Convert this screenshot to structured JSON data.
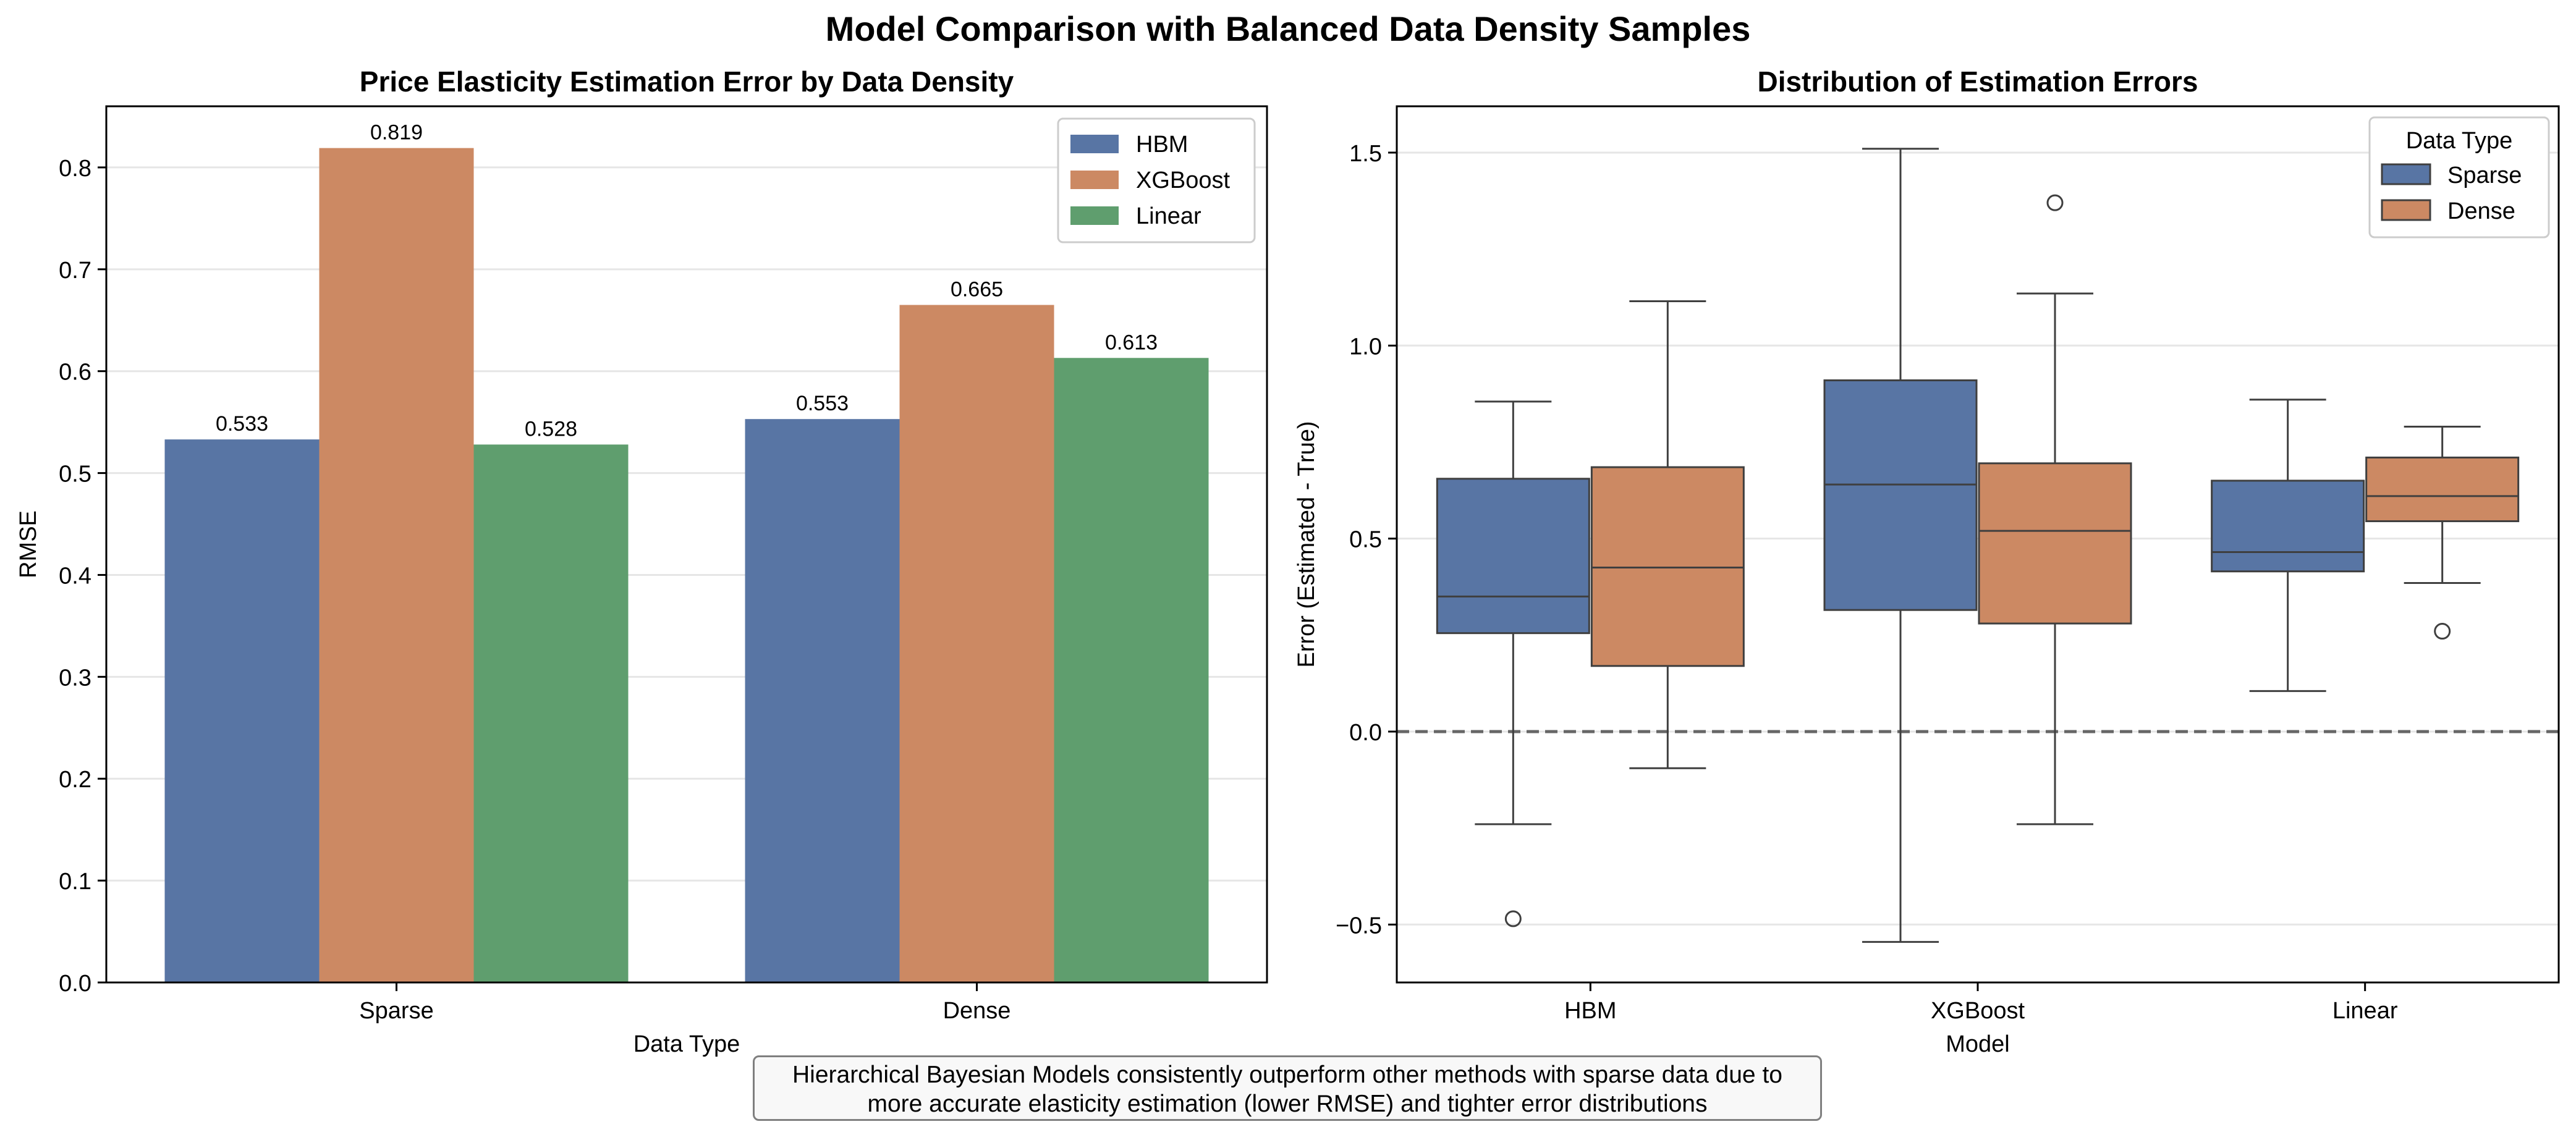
{
  "figure": {
    "suptitle": "Model Comparison with Balanced Data Density Samples",
    "note_lines": [
      "Hierarchical Bayesian Models consistently outperform other methods with sparse data due to",
      "more accurate elasticity estimation (lower RMSE) and tighter error distributions"
    ]
  },
  "colors": {
    "HBM": "#5875a4",
    "XGBoost": "#cc8963",
    "Linear": "#5f9e6e",
    "Sparse": "#5875a4",
    "Dense": "#cc8963"
  },
  "chart_data": [
    {
      "type": "bar",
      "title": "Price Elasticity Estimation Error by Data Density",
      "xlabel": "Data Type",
      "ylabel": "RMSE",
      "categories": [
        "Sparse",
        "Dense"
      ],
      "series": [
        {
          "name": "HBM",
          "values": [
            0.533,
            0.553
          ]
        },
        {
          "name": "XGBoost",
          "values": [
            0.819,
            0.665
          ]
        },
        {
          "name": "Linear",
          "values": [
            0.528,
            0.613
          ]
        }
      ],
      "data_labels": [
        [
          "0.533",
          "0.819",
          "0.528"
        ],
        [
          "0.553",
          "0.665",
          "0.613"
        ]
      ],
      "ylim": [
        0,
        0.86
      ],
      "yticks": [
        0.0,
        0.1,
        0.2,
        0.3,
        0.4,
        0.5,
        0.6,
        0.7,
        0.8
      ],
      "ytick_labels": [
        "0.0",
        "0.1",
        "0.2",
        "0.3",
        "0.4",
        "0.5",
        "0.6",
        "0.7",
        "0.8"
      ],
      "grid": "y",
      "legend": {
        "placement": "top-right",
        "entries": [
          "HBM",
          "XGBoost",
          "Linear"
        ]
      }
    },
    {
      "type": "box",
      "title": "Distribution of Estimation Errors",
      "xlabel": "Model",
      "ylabel": "Error (Estimated - True)",
      "categories": [
        "HBM",
        "XGBoost",
        "Linear"
      ],
      "series": [
        {
          "name": "Sparse",
          "boxes": [
            {
              "whisker_low": -0.24,
              "q1": 0.255,
              "median": 0.35,
              "q3": 0.655,
              "whisker_high": 0.855,
              "outliers": [
                -0.485
              ]
            },
            {
              "whisker_low": -0.545,
              "q1": 0.315,
              "median": 0.64,
              "q3": 0.91,
              "whisker_high": 1.51,
              "outliers": []
            },
            {
              "whisker_low": 0.105,
              "q1": 0.415,
              "median": 0.465,
              "q3": 0.65,
              "whisker_high": 0.86,
              "outliers": []
            }
          ]
        },
        {
          "name": "Dense",
          "boxes": [
            {
              "whisker_low": -0.095,
              "q1": 0.17,
              "median": 0.425,
              "q3": 0.685,
              "whisker_high": 1.115,
              "outliers": []
            },
            {
              "whisker_low": -0.24,
              "q1": 0.28,
              "median": 0.52,
              "q3": 0.695,
              "whisker_high": 1.135,
              "outliers": [
                1.37
              ]
            },
            {
              "whisker_low": 0.385,
              "q1": 0.545,
              "median": 0.61,
              "q3": 0.71,
              "whisker_high": 0.79,
              "outliers": [
                0.26
              ]
            }
          ]
        }
      ],
      "reference_line": {
        "y": 0.0,
        "style": "dashed"
      },
      "ylim": [
        -0.65,
        1.62
      ],
      "yticks": [
        -0.5,
        0.0,
        0.5,
        1.0,
        1.5
      ],
      "ytick_labels": [
        "−0.5",
        "0.0",
        "0.5",
        "1.0",
        "1.5"
      ],
      "grid": "y",
      "legend": {
        "placement": "top-right",
        "title": "Data Type",
        "entries": [
          "Sparse",
          "Dense"
        ]
      }
    }
  ]
}
